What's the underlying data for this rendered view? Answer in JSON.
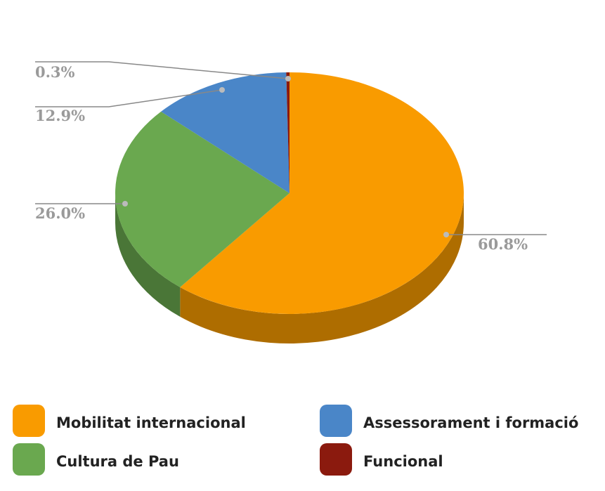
{
  "chart_data": {
    "type": "pie",
    "categories": [
      "Mobilitat internacional",
      "Cultura de Pau",
      "Assessorament i formació",
      "Funcional"
    ],
    "values": [
      60.8,
      26.0,
      12.9,
      0.3
    ],
    "value_labels": [
      "60.8%",
      "26.0%",
      "12.9%",
      "0.3%"
    ],
    "colors": [
      "#f99b00",
      "#6aa84f",
      "#4a86c8",
      "#8b1a0e"
    ]
  }
}
